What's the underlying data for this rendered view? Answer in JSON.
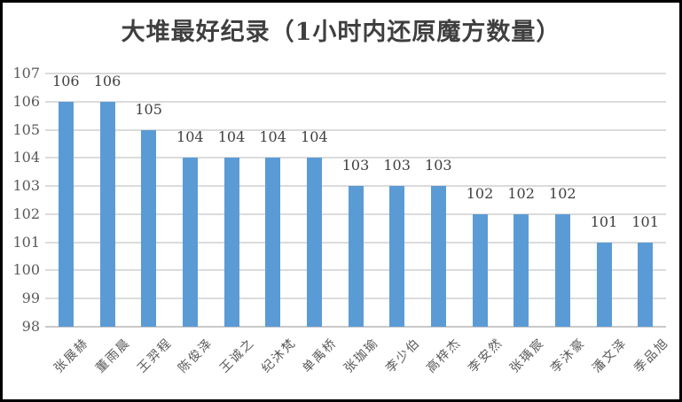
{
  "chart_data": {
    "type": "bar",
    "title": "大堆最好纪录（1小时内还原魔方数量）",
    "categories": [
      "张展赫",
      "董雨晨",
      "王羿程",
      "陈俊泽",
      "王诚之",
      "纪沐梵",
      "单禹桥",
      "张珈瑜",
      "李少伯",
      "高梓杰",
      "李安然",
      "张瑀宸",
      "李沐豪",
      "潘文泽",
      "季品旭"
    ],
    "values": [
      106,
      106,
      105,
      104,
      104,
      104,
      104,
      103,
      103,
      103,
      102,
      102,
      102,
      101,
      101
    ],
    "data_labels": [
      "106",
      "106",
      "105",
      "104",
      "104",
      "104",
      "104",
      "103",
      "103",
      "103",
      "102",
      "102",
      "102",
      "101",
      "101"
    ],
    "xlabel": "",
    "ylabel": "",
    "ylim": [
      98,
      107
    ],
    "yticks": [
      "98",
      "99",
      "100",
      "101",
      "102",
      "103",
      "104",
      "105",
      "106",
      "107"
    ],
    "grid": "horizontal",
    "legend": "none",
    "colors": {
      "bar": "#5B9BD5",
      "gridline": "#DBDBDB",
      "axis_line": "#C8C8C8",
      "tick_label": "#595959",
      "data_label": "#404040",
      "title": "#3F3F3F",
      "background": "#FFFFFF",
      "frame_border": "#000000"
    }
  }
}
